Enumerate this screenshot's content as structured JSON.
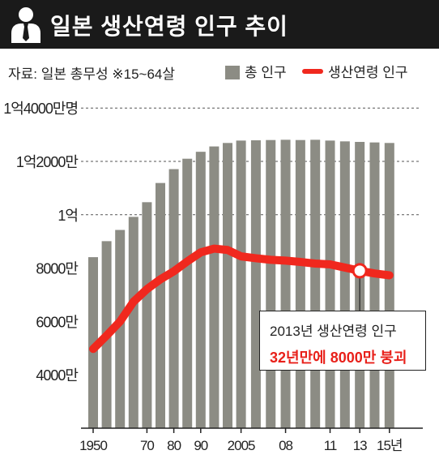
{
  "header": {
    "title": "일본 생산연령 인구 추이",
    "source": "자료: 일본 총무성 ※15~64살"
  },
  "legend": {
    "total_label": "총 인구",
    "working_label": "생산연령 인구"
  },
  "colors": {
    "bar": "#8c8c84",
    "line": "#f0281e",
    "highlight": "#e8201a",
    "title_bg": "#1a1a1a"
  },
  "callout": {
    "line1": "2013년 생산연령 인구",
    "line2": "32년만에 8000만 붕괴"
  },
  "chart_data": {
    "type": "bar",
    "title": "일본 생산연령 인구 추이",
    "y_ticks": [
      {
        "value": 40000000,
        "label": "4000만"
      },
      {
        "value": 60000000,
        "label": "6000만"
      },
      {
        "value": 80000000,
        "label": "8000만"
      },
      {
        "value": 100000000,
        "label": "1억"
      },
      {
        "value": 120000000,
        "label": "1억2000만"
      },
      {
        "value": 140000000,
        "label": "1억4000만명"
      }
    ],
    "ylim": [
      20000000,
      140000000
    ],
    "x_tick_labels": [
      {
        "year": 1950,
        "label": "1950"
      },
      {
        "year": 1970,
        "label": "70"
      },
      {
        "year": 1980,
        "label": "80"
      },
      {
        "year": 1990,
        "label": "90"
      },
      {
        "year": 2005,
        "label": "2005"
      },
      {
        "year": 2008,
        "label": "08"
      },
      {
        "year": 2011,
        "label": "11"
      },
      {
        "year": 2013,
        "label": "13"
      },
      {
        "year": 2015,
        "label": "15년"
      }
    ],
    "categories": [
      1950,
      1955,
      1960,
      1965,
      1970,
      1975,
      1980,
      1985,
      1990,
      1995,
      2000,
      2005,
      2006,
      2007,
      2008,
      2009,
      2010,
      2011,
      2012,
      2013,
      2014,
      2015
    ],
    "series": [
      {
        "name": "총 인구",
        "kind": "bar",
        "values": [
          84100000,
          90100000,
          94300000,
          99200000,
          104700000,
          111900000,
          117100000,
          121000000,
          123600000,
          125600000,
          126900000,
          127800000,
          127900000,
          128000000,
          128100000,
          128000000,
          128100000,
          127800000,
          127500000,
          127300000,
          127100000,
          126900000
        ]
      },
      {
        "name": "생산연령 인구",
        "kind": "line",
        "values": [
          49700000,
          54700000,
          60000000,
          67400000,
          72100000,
          75800000,
          78800000,
          82500000,
          85900000,
          87300000,
          86800000,
          84400000,
          83700000,
          83100000,
          82800000,
          82300000,
          81700000,
          81400000,
          80200000,
          79000000,
          78000000,
          77300000
        ]
      }
    ],
    "highlight": {
      "year": 2013,
      "value": 79000000
    },
    "grid": "dashed horizontal at upper ticks"
  }
}
